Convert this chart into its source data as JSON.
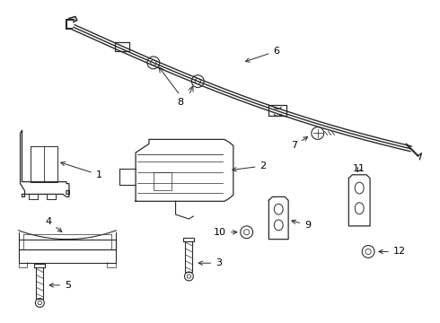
{
  "background_color": "#ffffff",
  "line_color": "#2a2a2a",
  "fig_width": 4.9,
  "fig_height": 3.6,
  "dpi": 100
}
